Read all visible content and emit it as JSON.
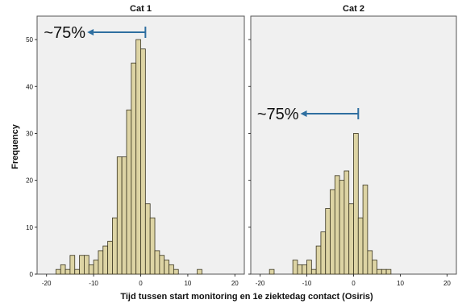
{
  "figure": {
    "xlabel": "Tijd tussen start monitoring en 1e ziektedag contact (Osiris)",
    "ylabel": "Frequency",
    "colors": {
      "bar_fill": "#ddd4a4",
      "bar_stroke": "#3a3520",
      "panel_bg": "#f0f0f0",
      "arrow": "#2f6fa0",
      "text": "#111111"
    }
  },
  "chart_data": [
    {
      "type": "bar",
      "title": "Cat 1",
      "bin_width": 1,
      "x_range": [
        -22,
        22
      ],
      "x_ticks": [
        -20,
        -10,
        0,
        10,
        20
      ],
      "y_range": [
        0,
        55
      ],
      "y_ticks": [
        0,
        10,
        20,
        30,
        40,
        50
      ],
      "bin_left_edges": [
        -18,
        -17,
        -16,
        -15,
        -14,
        -13,
        -12,
        -11,
        -10,
        -9,
        -8,
        -7,
        -6,
        -5,
        -4,
        -3,
        -2,
        -1,
        0,
        1,
        2,
        3,
        4,
        5,
        6,
        7,
        12
      ],
      "values": [
        1,
        2,
        1,
        4,
        1,
        4,
        4,
        2,
        3,
        5,
        6,
        7,
        12,
        25,
        25,
        35,
        45,
        50,
        48,
        15,
        12,
        5,
        4,
        3,
        2,
        1,
        1
      ],
      "annotation": {
        "label": "~75%",
        "value": 1
      }
    },
    {
      "type": "bar",
      "title": "Cat 2",
      "bin_width": 1,
      "x_range": [
        -22,
        22
      ],
      "x_ticks": [
        -20,
        -10,
        0,
        10,
        20
      ],
      "y_range": [
        0,
        55
      ],
      "y_ticks": [
        0,
        10,
        20,
        30,
        40,
        50
      ],
      "bin_left_edges": [
        -18,
        -13,
        -12,
        -11,
        -10,
        -9,
        -8,
        -7,
        -6,
        -5,
        -4,
        -3,
        -2,
        -1,
        0,
        1,
        2,
        3,
        4,
        5,
        6,
        7
      ],
      "values": [
        1,
        3,
        2,
        2,
        3,
        1,
        6,
        9,
        14,
        18,
        21,
        20,
        22,
        15,
        30,
        12,
        19,
        5,
        3,
        1,
        1,
        1
      ],
      "annotation": {
        "label": "~75%",
        "value": 1
      }
    }
  ]
}
